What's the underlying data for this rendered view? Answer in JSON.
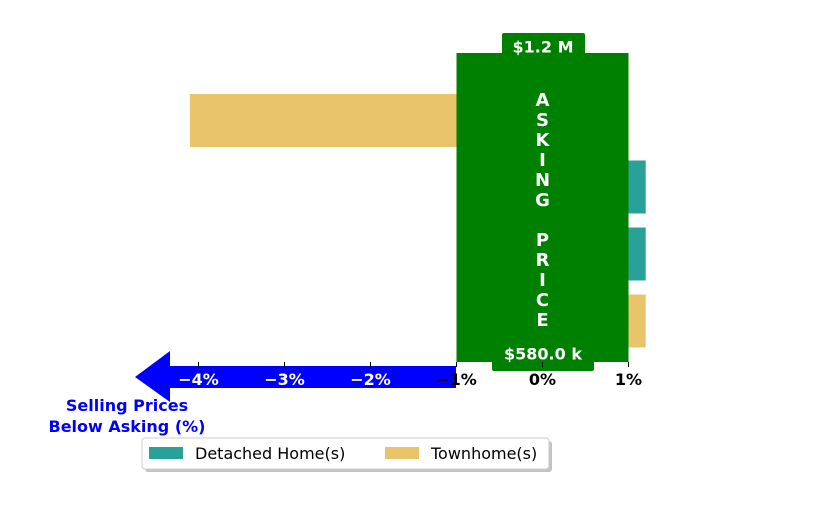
{
  "chart_data": {
    "type": "bar",
    "orientation": "horizontal",
    "x_ticks": [
      -4,
      -3,
      -2,
      -1,
      0,
      1
    ],
    "x_tick_labels": [
      "−4%",
      "−3%",
      "−2%",
      "−1%",
      "0%",
      "1%"
    ],
    "xlim": [
      -4.5,
      1.2
    ],
    "bars": [
      {
        "series": "Townhome(s)",
        "value": -4.1
      },
      {
        "series": "Detached Home(s)",
        "value": 1.2
      },
      {
        "series": "Detached Home(s)",
        "value": 1.2
      },
      {
        "series": "Townhome(s)",
        "value": 1.2
      }
    ],
    "series": [
      {
        "name": "Detached Home(s)",
        "color": "#2aa198"
      },
      {
        "name": "Townhome(s)",
        "color": "#e9c46a"
      }
    ],
    "asking_price_band": {
      "label_letters": [
        "A",
        "S",
        "K",
        "I",
        "N",
        "G",
        "",
        "P",
        "R",
        "I",
        "C",
        "E"
      ],
      "top_label": "$1.2 M",
      "bottom_label": "$580.0 k",
      "x_range": [
        -1,
        1
      ],
      "color": "#008000"
    },
    "arrow": {
      "label_line1": "Selling Prices",
      "label_line2": "Below Asking (%)",
      "color": "#0000ff"
    },
    "legend": {
      "placement": "bottom-left",
      "columns": 2
    }
  }
}
